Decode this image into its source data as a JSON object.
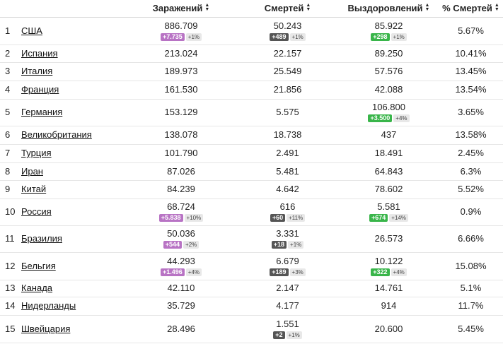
{
  "headers": {
    "confirmed": "Заражений",
    "deaths": "Смертей",
    "recovered": "Выздоровлений",
    "mortality": "% Смертей",
    "sort_icon": "sort-icon"
  },
  "rows": [
    {
      "rank": "1",
      "country": "США",
      "confirmed": {
        "value": "886.709",
        "delta": "+7.735",
        "pct": "+1%"
      },
      "deaths": {
        "value": "50.243",
        "delta": "+489",
        "pct": "+1%"
      },
      "recovered": {
        "value": "85.922",
        "delta": "+298",
        "pct": "+1%"
      },
      "mortality": "5.67%"
    },
    {
      "rank": "2",
      "country": "Испания",
      "confirmed": {
        "value": "213.024"
      },
      "deaths": {
        "value": "22.157"
      },
      "recovered": {
        "value": "89.250"
      },
      "mortality": "10.41%"
    },
    {
      "rank": "3",
      "country": "Италия",
      "confirmed": {
        "value": "189.973"
      },
      "deaths": {
        "value": "25.549"
      },
      "recovered": {
        "value": "57.576"
      },
      "mortality": "13.45%"
    },
    {
      "rank": "4",
      "country": "Франция",
      "confirmed": {
        "value": "161.530"
      },
      "deaths": {
        "value": "21.856"
      },
      "recovered": {
        "value": "42.088"
      },
      "mortality": "13.54%"
    },
    {
      "rank": "5",
      "country": "Германия",
      "confirmed": {
        "value": "153.129"
      },
      "deaths": {
        "value": "5.575"
      },
      "recovered": {
        "value": "106.800",
        "delta": "+3.500",
        "pct": "+4%"
      },
      "mortality": "3.65%"
    },
    {
      "rank": "6",
      "country": "Великобритания",
      "confirmed": {
        "value": "138.078"
      },
      "deaths": {
        "value": "18.738"
      },
      "recovered": {
        "value": "437"
      },
      "mortality": "13.58%"
    },
    {
      "rank": "7",
      "country": "Турция",
      "confirmed": {
        "value": "101.790"
      },
      "deaths": {
        "value": "2.491"
      },
      "recovered": {
        "value": "18.491"
      },
      "mortality": "2.45%"
    },
    {
      "rank": "8",
      "country": "Иран",
      "confirmed": {
        "value": "87.026"
      },
      "deaths": {
        "value": "5.481"
      },
      "recovered": {
        "value": "64.843"
      },
      "mortality": "6.3%"
    },
    {
      "rank": "9",
      "country": "Китай",
      "confirmed": {
        "value": "84.239"
      },
      "deaths": {
        "value": "4.642"
      },
      "recovered": {
        "value": "78.602"
      },
      "mortality": "5.52%"
    },
    {
      "rank": "10",
      "country": "Россия",
      "confirmed": {
        "value": "68.724",
        "delta": "+5.838",
        "pct": "+10%"
      },
      "deaths": {
        "value": "616",
        "delta": "+60",
        "pct": "+11%"
      },
      "recovered": {
        "value": "5.581",
        "delta": "+674",
        "pct": "+14%"
      },
      "mortality": "0.9%"
    },
    {
      "rank": "11",
      "country": "Бразилия",
      "confirmed": {
        "value": "50.036",
        "delta": "+544",
        "pct": "+2%"
      },
      "deaths": {
        "value": "3.331",
        "delta": "+18",
        "pct": "+1%"
      },
      "recovered": {
        "value": "26.573"
      },
      "mortality": "6.66%"
    },
    {
      "rank": "12",
      "country": "Бельгия",
      "confirmed": {
        "value": "44.293",
        "delta": "+1.496",
        "pct": "+4%"
      },
      "deaths": {
        "value": "6.679",
        "delta": "+189",
        "pct": "+3%"
      },
      "recovered": {
        "value": "10.122",
        "delta": "+322",
        "pct": "+4%"
      },
      "mortality": "15.08%"
    },
    {
      "rank": "13",
      "country": "Канада",
      "confirmed": {
        "value": "42.110"
      },
      "deaths": {
        "value": "2.147"
      },
      "recovered": {
        "value": "14.761"
      },
      "mortality": "5.1%"
    },
    {
      "rank": "14",
      "country": "Нидерланды",
      "confirmed": {
        "value": "35.729"
      },
      "deaths": {
        "value": "4.177"
      },
      "recovered": {
        "value": "914"
      },
      "mortality": "11.7%"
    },
    {
      "rank": "15",
      "country": "Швейцария",
      "confirmed": {
        "value": "28.496"
      },
      "deaths": {
        "value": "1.551",
        "delta": "+2",
        "pct": "+1%"
      },
      "recovered": {
        "value": "20.600"
      },
      "mortality": "5.45%"
    }
  ]
}
